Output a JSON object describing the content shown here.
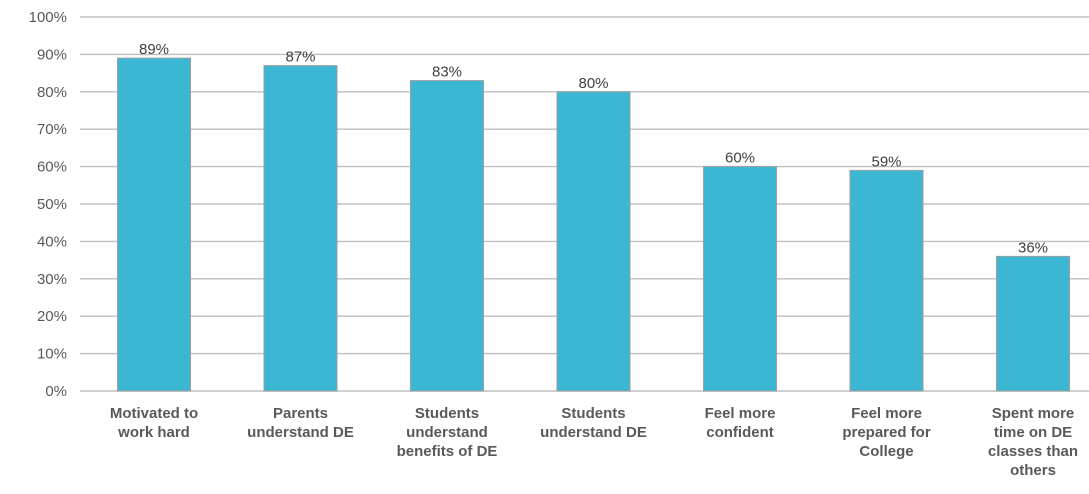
{
  "chart_data": {
    "type": "bar",
    "categories": [
      [
        "Motivated to",
        "work hard"
      ],
      [
        "Parents",
        "understand DE"
      ],
      [
        "Students",
        "understand",
        "benefits of DE"
      ],
      [
        "Students",
        "understand DE"
      ],
      [
        "Feel more",
        "confident"
      ],
      [
        "Feel more",
        "prepared for",
        "College"
      ],
      [
        "Spent more",
        "time on DE",
        "classes than",
        "others"
      ]
    ],
    "values": [
      89,
      87,
      83,
      80,
      60,
      59,
      36
    ],
    "data_labels": [
      "89%",
      "87%",
      "83%",
      "80%",
      "60%",
      "59%",
      "36%"
    ],
    "y_ticks": [
      "0%",
      "10%",
      "20%",
      "30%",
      "40%",
      "50%",
      "60%",
      "70%",
      "80%",
      "90%",
      "100%"
    ],
    "ylim": [
      0,
      100
    ],
    "grid": true,
    "legend": "none",
    "bar_color": "#3bb7d3"
  }
}
